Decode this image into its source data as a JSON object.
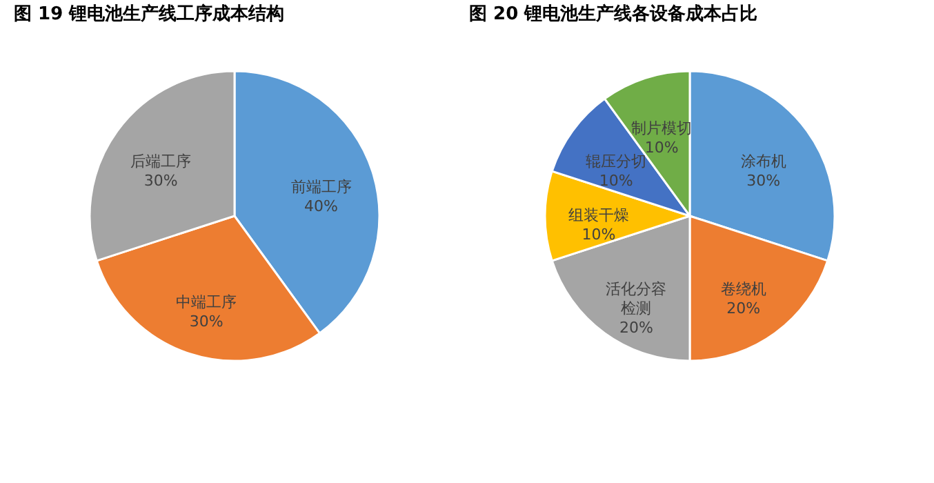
{
  "chart_data": [
    {
      "type": "pie",
      "title": "图 19  锂电池生产线工序成本结构",
      "categories": [
        "前端工序",
        "中端工序",
        "后端工序"
      ],
      "values": [
        40,
        30,
        30
      ],
      "value_labels": [
        "40%",
        "30%",
        "30%"
      ],
      "colors": [
        "#5b9bd5",
        "#ed7d31",
        "#a5a5a5"
      ]
    },
    {
      "type": "pie",
      "title": "图 20  锂电池生产线各设备成本占比",
      "categories": [
        "涂布机",
        "卷绕机",
        "活化分容检测",
        "组装干燥",
        "辊压分切",
        "制片模切"
      ],
      "values": [
        30,
        20,
        20,
        10,
        10,
        10
      ],
      "value_labels": [
        "30%",
        "20%",
        "20%",
        "10%",
        "10%",
        "10%"
      ],
      "colors": [
        "#5b9bd5",
        "#ed7d31",
        "#a5a5a5",
        "#ffc000",
        "#4472c4",
        "#70ad47"
      ]
    }
  ]
}
